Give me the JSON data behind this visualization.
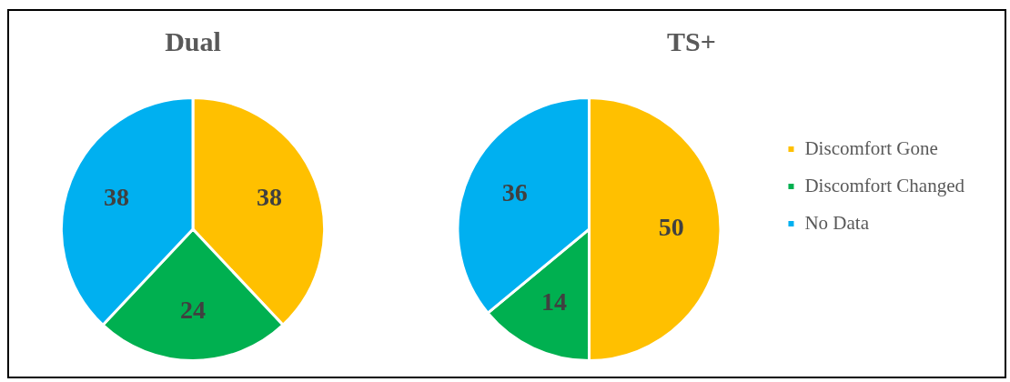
{
  "chart_data": [
    {
      "type": "pie",
      "title": "Dual",
      "categories": [
        null,
        null,
        null
      ],
      "values": [
        38,
        24,
        38
      ],
      "colors": [
        "#ffc000",
        "#00b050",
        "#00b0f0"
      ],
      "data_labels": true,
      "legend": false
    },
    {
      "type": "pie",
      "title": "TS+",
      "categories": [
        "Discomfort Gone",
        "Discomfort Changed",
        "No Data"
      ],
      "values": [
        50,
        14,
        36
      ],
      "colors": [
        "#ffc000",
        "#00b050",
        "#00b0f0"
      ],
      "data_labels": true,
      "legend": "right"
    }
  ]
}
